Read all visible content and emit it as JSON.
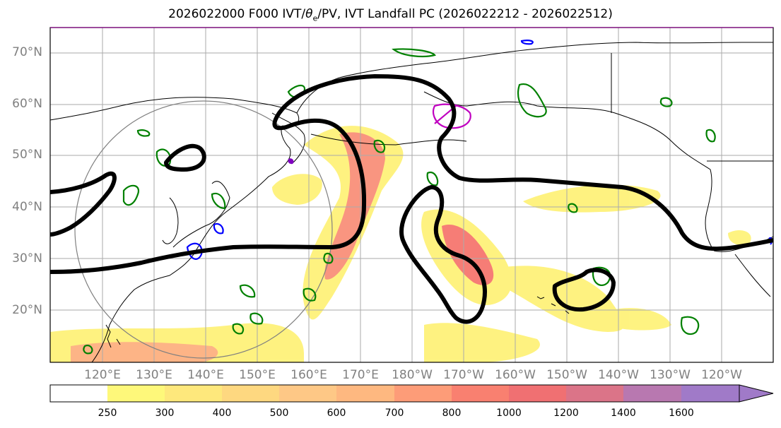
{
  "title": {
    "main": "2026022000 F000 IVT/",
    "theta": "θ",
    "theta_sub": "e",
    "tail": "/PV, IVT Landfall PC (2026022212 - 2026022512)"
  },
  "lat_labels": [
    "70°N",
    "60°N",
    "50°N",
    "40°N",
    "30°N",
    "20°N"
  ],
  "lon_labels": [
    "120°E",
    "130°E",
    "140°E",
    "150°E",
    "160°E",
    "170°E",
    "180°W",
    "170°W",
    "160°W",
    "150°W",
    "140°W",
    "130°W",
    "120°W"
  ],
  "colorbar": {
    "ticks": [
      "250",
      "300",
      "400",
      "500",
      "600",
      "700",
      "800",
      "1000",
      "1200",
      "1400",
      "1600"
    ],
    "colors": [
      "#ffffff",
      "#fef87a",
      "#fee87c",
      "#fed880",
      "#fec886",
      "#feb880",
      "#fd9c78",
      "#f98070",
      "#f07072",
      "#db7488",
      "#b878b0",
      "#a07ac8"
    ]
  },
  "styles": {
    "ivt_fill": "#fde25e",
    "ivt_core": "#f6776f",
    "pv_contour": "#000000",
    "theta_contour": "#008000",
    "blue_contour": "#0000ff",
    "magenta_contour": "#c000c0"
  }
}
